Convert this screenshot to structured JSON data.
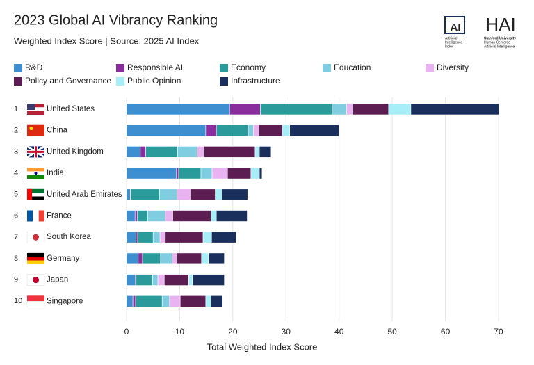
{
  "chart_data": {
    "type": "bar",
    "orientation": "horizontal",
    "stacked": true,
    "title": "2023 Global AI Vibrancy Ranking",
    "subtitle": "Weighted Index Score | Source: 2025 AI Index",
    "x_label": "Total Weighted Index Score",
    "ranks": [
      1,
      2,
      3,
      4,
      5,
      6,
      7,
      8,
      9,
      10
    ],
    "categories": [
      "United States",
      "China",
      "United Kingdom",
      "India",
      "United Arab Emirates",
      "France",
      "South Korea",
      "Germany",
      "Japan",
      "Singapore"
    ],
    "series": [
      {
        "name": "R&D",
        "color": "#3d8fd0",
        "values": [
          19.4,
          14.9,
          2.6,
          9.4,
          0.7,
          1.6,
          1.8,
          2.2,
          1.7,
          1.2
        ]
      },
      {
        "name": "Responsible AI",
        "color": "#8a2e9e",
        "values": [
          5.8,
          2.0,
          1.0,
          0.4,
          0.1,
          0.4,
          0.3,
          0.8,
          0.1,
          0.5
        ]
      },
      {
        "name": "Economy",
        "color": "#2a9a9a",
        "values": [
          13.5,
          6.0,
          6.0,
          4.2,
          5.4,
          2.0,
          2.9,
          3.4,
          3.1,
          5.0
        ]
      },
      {
        "name": "Education",
        "color": "#80cde2",
        "values": [
          2.7,
          1.0,
          3.7,
          2.1,
          3.3,
          3.3,
          1.3,
          2.2,
          1.0,
          1.4
        ]
      },
      {
        "name": "Diversity",
        "color": "#e9b3f2",
        "values": [
          1.2,
          1.0,
          1.3,
          2.9,
          2.6,
          1.4,
          1.0,
          0.9,
          1.2,
          2.0
        ]
      },
      {
        "name": "Policy and Governance",
        "color": "#5c1e52",
        "values": [
          6.7,
          4.4,
          9.6,
          4.4,
          4.6,
          7.2,
          7.1,
          4.6,
          4.6,
          4.8
        ]
      },
      {
        "name": "Public Opinion",
        "color": "#a8eef8",
        "values": [
          4.2,
          1.4,
          0.8,
          1.6,
          1.3,
          1.0,
          1.6,
          1.3,
          0.7,
          1.0
        ]
      },
      {
        "name": "Infrastructure",
        "color": "#1a2f5c",
        "values": [
          16.6,
          9.3,
          2.2,
          0.5,
          4.8,
          5.8,
          4.6,
          3.0,
          6.0,
          2.2
        ]
      }
    ],
    "xlim": [
      0,
      70
    ],
    "xticks": [
      0,
      10,
      20,
      30,
      40,
      50,
      60,
      70
    ],
    "grid": true
  },
  "logos": {
    "ai_index": {
      "mark": "AI",
      "text": [
        "Artificial",
        "Intelligence",
        "Index"
      ]
    },
    "hai": {
      "mark": "HAI",
      "text": [
        "Stanford University",
        "Human Centered",
        "Artificial Intelligence"
      ]
    }
  }
}
